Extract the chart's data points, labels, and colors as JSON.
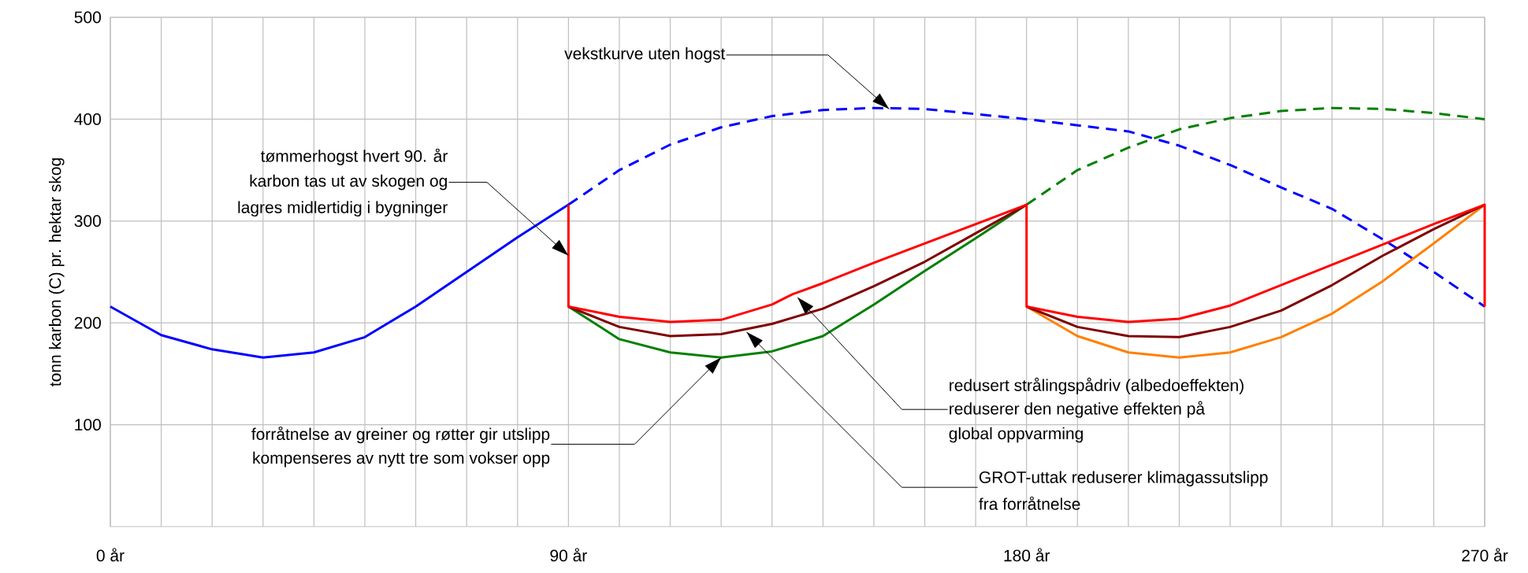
{
  "chart_data": {
    "type": "line",
    "ylabel": "tonn karbon (C) pr. hektar skog",
    "xlim": [
      0,
      270
    ],
    "ylim": [
      0,
      500
    ],
    "xticks": [
      {
        "value": 0,
        "label": "0 år"
      },
      {
        "value": 10,
        "label": null
      },
      {
        "value": 20,
        "label": null
      },
      {
        "value": 30,
        "label": null
      },
      {
        "value": 40,
        "label": null
      },
      {
        "value": 50,
        "label": null
      },
      {
        "value": 60,
        "label": null
      },
      {
        "value": 70,
        "label": null
      },
      {
        "value": 80,
        "label": null
      },
      {
        "value": 90,
        "label": "90 år"
      },
      {
        "value": 100,
        "label": null
      },
      {
        "value": 110,
        "label": null
      },
      {
        "value": 120,
        "label": null
      },
      {
        "value": 130,
        "label": null
      },
      {
        "value": 140,
        "label": null
      },
      {
        "value": 150,
        "label": null
      },
      {
        "value": 160,
        "label": null
      },
      {
        "value": 170,
        "label": null
      },
      {
        "value": 180,
        "label": "180 år"
      },
      {
        "value": 190,
        "label": null
      },
      {
        "value": 200,
        "label": null
      },
      {
        "value": 210,
        "label": null
      },
      {
        "value": 220,
        "label": null
      },
      {
        "value": 230,
        "label": null
      },
      {
        "value": 240,
        "label": null
      },
      {
        "value": 250,
        "label": null
      },
      {
        "value": 260,
        "label": null
      },
      {
        "value": 270,
        "label": "270 år"
      }
    ],
    "yticks": [
      100,
      200,
      300,
      400,
      500
    ],
    "grid": true,
    "marker": "none",
    "series": [
      {
        "color": "#0000ff",
        "line_style": "solid",
        "x": [
          0,
          10,
          20,
          30,
          40,
          50,
          60,
          70,
          80,
          90
        ],
        "values": [
          216,
          188,
          174,
          166,
          171,
          186,
          216,
          250,
          284,
          316
        ]
      },
      {
        "color": "#0000ff",
        "line_style": "dashed",
        "x": [
          90,
          100,
          110,
          120,
          130,
          140,
          150,
          160,
          170,
          180,
          190,
          200,
          210,
          220,
          230,
          240,
          250,
          260,
          270
        ],
        "values": [
          316,
          350,
          375,
          392,
          403,
          409,
          411,
          410,
          405,
          400,
          394,
          388,
          374,
          355,
          333,
          312,
          282,
          250,
          216
        ]
      },
      {
        "color": "#008000",
        "line_style": "solid",
        "x": [
          90,
          100,
          110,
          120,
          130,
          140,
          150,
          160,
          170,
          180
        ],
        "values": [
          216,
          184,
          171,
          166,
          172,
          187,
          218,
          251,
          283,
          316
        ]
      },
      {
        "color": "#008000",
        "line_style": "dashed",
        "x": [
          180,
          190,
          200,
          210,
          220,
          230,
          240,
          250,
          260,
          270
        ],
        "values": [
          316,
          350,
          372,
          390,
          401,
          408,
          411,
          410,
          406,
          400
        ]
      },
      {
        "color": "#ff8000",
        "line_style": "solid",
        "x": [
          180,
          190,
          200,
          210,
          220,
          230,
          240,
          250,
          260,
          270
        ],
        "values": [
          216,
          187,
          171,
          166,
          171,
          186,
          209,
          241,
          278,
          316
        ]
      },
      {
        "color": "#800000",
        "line_style": "solid",
        "x": [
          90,
          100,
          110,
          120,
          130,
          140,
          150,
          160,
          170,
          180
        ],
        "values": [
          216,
          196,
          187,
          189,
          199,
          214,
          236,
          260,
          288,
          316
        ]
      },
      {
        "color": "#800000",
        "line_style": "solid",
        "x": [
          180,
          190,
          200,
          210,
          220,
          230,
          240,
          250,
          260,
          270
        ],
        "values": [
          216,
          196,
          187,
          186,
          196,
          212,
          237,
          266,
          292,
          316
        ]
      },
      {
        "color": "#ff0000",
        "line_style": "solid",
        "x": [
          90,
          90,
          100,
          110,
          120,
          130,
          134,
          140,
          150,
          160,
          170,
          180,
          180,
          190,
          200,
          210,
          220,
          230,
          240,
          250,
          260,
          270,
          270
        ],
        "values": [
          316,
          216,
          206,
          201,
          203,
          218,
          228,
          239,
          259,
          278,
          297,
          316,
          216,
          206,
          201,
          204,
          217,
          237,
          257,
          277,
          297,
          316,
          216
        ]
      }
    ],
    "annotations": [
      {
        "text": "vekstkurve uten hogst",
        "x": 153,
        "y": 410
      },
      "tømmerhogst hvert 90. år",
      {
        "text": "karbon tas ut av skogen og",
        "x": 90,
        "y": 266
      },
      "lagres midlertidig i bygninger",
      {
        "text": "forråtnelse av greiner og røtter gir utslipp",
        "x": 120,
        "y": 166
      },
      "kompenseres av nytt tre som vokser opp",
      "redusert strålingspådriv (albedoeffekten)",
      {
        "text": "reduserer den negative effekten på",
        "x": 135,
        "y": 225
      },
      "global oppvarming",
      {
        "text": "GROT-uttak reduserer klimagassutslipp",
        "x": 125,
        "y": 191
      },
      "fra forråtnelse"
    ]
  }
}
